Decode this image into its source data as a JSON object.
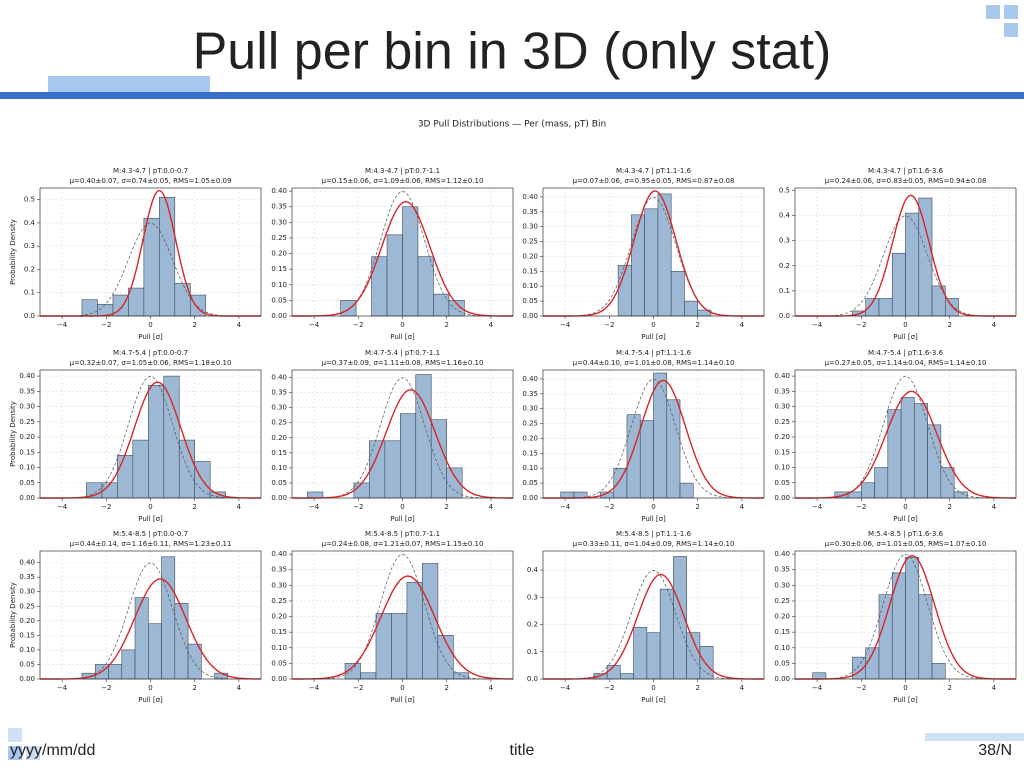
{
  "slide": {
    "title": "Pull per bin in 3D (only stat)",
    "date": "yyyy/mm/dd",
    "footer_title": "title",
    "page": "38/N"
  },
  "figure_title": "3D Pull Distributions — Per (mass, pT) Bin",
  "chart_data": [
    {
      "type": "histogram",
      "title": "M:4.3-4.7 | pT:0.0-0.7",
      "subtitle": "μ=0.40±0.07, σ=0.74±0.05, RMS=1.05±0.09",
      "x_label": "Pull [σ]",
      "y_label": "Probability Density",
      "color": "#9db8d4",
      "fit_color": "#d62728",
      "grid": true,
      "bins": [
        -3.1,
        -2.4,
        -1.7,
        -1.0,
        -0.3,
        0.4,
        1.1,
        1.8,
        2.5
      ],
      "values": [
        0.07,
        0.05,
        0.09,
        0.12,
        0.42,
        0.51,
        0.14,
        0.09
      ],
      "fit": {
        "mu": 0.4,
        "sigma": 0.74
      },
      "xlim": [
        -5,
        5
      ],
      "xticks": [
        {
          "value": -4,
          "label": "−4"
        },
        {
          "value": -2,
          "label": "−2"
        },
        0,
        2,
        4
      ],
      "ylim": [
        0,
        0.55
      ],
      "yticks": [
        {
          "value": 0,
          "label": "0.0"
        },
        {
          "value": 0.1,
          "label": "0.1"
        },
        {
          "value": 0.2,
          "label": "0.2"
        },
        {
          "value": 0.3,
          "label": "0.3"
        },
        {
          "value": 0.4,
          "label": "0.4"
        },
        {
          "value": 0.5,
          "label": "0.5"
        }
      ]
    },
    {
      "type": "histogram",
      "title": "M:4.3-4.7 | pT:0.7-1.1",
      "subtitle": "μ=0.15±0.06, σ=1.09±0.06, RMS=1.12±0.10",
      "x_label": "Pull [σ]",
      "color": "#9db8d4",
      "fit_color": "#d62728",
      "grid": true,
      "bins": [
        -2.8,
        -2.1,
        -1.4,
        -0.7,
        0,
        0.7,
        1.4,
        2.1,
        2.8
      ],
      "values": [
        0.05,
        0,
        0.19,
        0.26,
        0.35,
        0.19,
        0.07,
        0.05
      ],
      "fit": {
        "mu": 0.15,
        "sigma": 1.09
      },
      "xlim": [
        -5,
        5
      ],
      "xticks": [
        {
          "value": -4,
          "label": "−4"
        },
        {
          "value": -2,
          "label": "−2"
        },
        0,
        2,
        4
      ],
      "ylim": [
        0,
        0.41
      ],
      "yticks": [
        {
          "value": 0,
          "label": "0.00"
        },
        {
          "value": 0.05,
          "label": "0.05"
        },
        {
          "value": 0.1,
          "label": "0.10"
        },
        {
          "value": 0.15,
          "label": "0.15"
        },
        {
          "value": 0.2,
          "label": "0.20"
        },
        {
          "value": 0.25,
          "label": "0.25"
        },
        {
          "value": 0.3,
          "label": "0.30"
        },
        {
          "value": 0.35,
          "label": "0.35"
        },
        {
          "value": 0.4,
          "label": "0.40"
        }
      ]
    },
    {
      "type": "histogram",
      "title": "M:4.3-4.7 | pT:1.1-1.6",
      "subtitle": "μ=0.07±0.06, σ=0.95±0.05, RMS=0.87±0.08",
      "x_label": "Pull [σ]",
      "color": "#9db8d4",
      "fit_color": "#d62728",
      "grid": true,
      "bins": [
        -1.6,
        -1.0,
        -0.4,
        0.2,
        0.8,
        1.4,
        2.0,
        2.6
      ],
      "values": [
        0.17,
        0.34,
        0.36,
        0.41,
        0.15,
        0.05,
        0.02
      ],
      "fit": {
        "mu": 0.07,
        "sigma": 0.95
      },
      "xlim": [
        -5,
        5
      ],
      "xticks": [
        {
          "value": -4,
          "label": "−4"
        },
        {
          "value": -2,
          "label": "−2"
        },
        0,
        2,
        4
      ],
      "ylim": [
        0,
        0.43
      ],
      "yticks": [
        {
          "value": 0,
          "label": "0.00"
        },
        {
          "value": 0.05,
          "label": "0.05"
        },
        {
          "value": 0.1,
          "label": "0.10"
        },
        {
          "value": 0.15,
          "label": "0.15"
        },
        {
          "value": 0.2,
          "label": "0.20"
        },
        {
          "value": 0.25,
          "label": "0.25"
        },
        {
          "value": 0.3,
          "label": "0.30"
        },
        {
          "value": 0.35,
          "label": "0.35"
        },
        {
          "value": 0.4,
          "label": "0.40"
        }
      ]
    },
    {
      "type": "histogram",
      "title": "M:4.3-4.7 | pT:1.6-3.6",
      "subtitle": "μ=0.24±0.06, σ=0.83±0.05, RMS=0.94±0.08",
      "x_label": "Pull [σ]",
      "color": "#9db8d4",
      "fit_color": "#d62728",
      "grid": true,
      "bins": [
        -2.4,
        -1.8,
        -1.2,
        -0.6,
        0,
        0.6,
        1.2,
        1.8,
        2.4
      ],
      "values": [
        0.02,
        0.07,
        0.07,
        0.25,
        0.41,
        0.47,
        0.12,
        0.07
      ],
      "fit": {
        "mu": 0.24,
        "sigma": 0.83
      },
      "xlim": [
        -5,
        5
      ],
      "xticks": [
        {
          "value": -4,
          "label": "−4"
        },
        {
          "value": -2,
          "label": "−2"
        },
        0,
        2,
        4
      ],
      "ylim": [
        0,
        0.51
      ],
      "yticks": [
        {
          "value": 0,
          "label": "0.0"
        },
        {
          "value": 0.1,
          "label": "0.1"
        },
        {
          "value": 0.2,
          "label": "0.2"
        },
        {
          "value": 0.3,
          "label": "0.3"
        },
        {
          "value": 0.4,
          "label": "0.4"
        },
        {
          "value": 0.5,
          "label": "0.5"
        }
      ]
    },
    {
      "type": "histogram",
      "title": "M:4.7-5.4 | pT:0.0-0.7",
      "subtitle": "μ=0.32±0.07, σ=1.05±0.06, RMS=1.18±0.10",
      "x_label": "Pull [σ]",
      "y_label": "Probability Density",
      "color": "#9db8d4",
      "fit_color": "#d62728",
      "grid": true,
      "bins": [
        -2.9,
        -2.2,
        -1.5,
        -0.8,
        -0.1,
        0.6,
        1.3,
        2.0,
        2.7,
        3.4
      ],
      "values": [
        0.05,
        0.05,
        0.14,
        0.19,
        0.37,
        0.4,
        0.19,
        0.12,
        0.02
      ],
      "fit": {
        "mu": 0.32,
        "sigma": 1.05
      },
      "xlim": [
        -5,
        5
      ],
      "xticks": [
        {
          "value": -4,
          "label": "−4"
        },
        {
          "value": -2,
          "label": "−2"
        },
        0,
        2,
        4
      ],
      "ylim": [
        0,
        0.42
      ],
      "yticks": [
        {
          "value": 0,
          "label": "0.00"
        },
        {
          "value": 0.05,
          "label": "0.05"
        },
        {
          "value": 0.1,
          "label": "0.10"
        },
        {
          "value": 0.15,
          "label": "0.15"
        },
        {
          "value": 0.2,
          "label": "0.20"
        },
        {
          "value": 0.25,
          "label": "0.25"
        },
        {
          "value": 0.3,
          "label": "0.30"
        },
        {
          "value": 0.35,
          "label": "0.35"
        },
        {
          "value": 0.4,
          "label": "0.40"
        }
      ]
    },
    {
      "type": "histogram",
      "title": "M:4.7-5.4 | pT:0.7-1.1",
      "subtitle": "μ=0.37±0.09, σ=1.11±0.08, RMS=1.16±0.10",
      "x_label": "Pull [σ]",
      "color": "#9db8d4",
      "fit_color": "#d62728",
      "grid": true,
      "bins": [
        -4.3,
        -3.6,
        -2.9,
        -2.2,
        -1.5,
        -0.8,
        -0.1,
        0.6,
        1.3,
        2.0,
        2.7
      ],
      "values": [
        0.02,
        0,
        0,
        0.05,
        0.19,
        0.19,
        0.28,
        0.41,
        0.26,
        0.1
      ],
      "fit": {
        "mu": 0.37,
        "sigma": 1.11
      },
      "xlim": [
        -5,
        5
      ],
      "xticks": [
        {
          "value": -4,
          "label": "−4"
        },
        {
          "value": -2,
          "label": "−2"
        },
        0,
        2,
        4
      ],
      "ylim": [
        0,
        0.425
      ],
      "yticks": [
        {
          "value": 0,
          "label": "0.00"
        },
        {
          "value": 0.05,
          "label": "0.05"
        },
        {
          "value": 0.1,
          "label": "0.10"
        },
        {
          "value": 0.15,
          "label": "0.15"
        },
        {
          "value": 0.2,
          "label": "0.20"
        },
        {
          "value": 0.25,
          "label": "0.25"
        },
        {
          "value": 0.3,
          "label": "0.30"
        },
        {
          "value": 0.35,
          "label": "0.35"
        },
        {
          "value": 0.4,
          "label": "0.40"
        }
      ]
    },
    {
      "type": "histogram",
      "title": "M:4.7-5.4 | pT:1.1-1.6",
      "subtitle": "μ=0.44±0.10, σ=1.01±0.08, RMS=1.14±0.10",
      "x_label": "Pull [σ]",
      "color": "#9db8d4",
      "fit_color": "#d62728",
      "grid": true,
      "bins": [
        -4.2,
        -3.6,
        -3.0,
        -2.4,
        -1.8,
        -1.2,
        -0.6,
        0,
        0.6,
        1.2,
        1.8
      ],
      "values": [
        0.02,
        0.02,
        0,
        0.02,
        0.1,
        0.28,
        0.26,
        0.42,
        0.33,
        0.05
      ],
      "fit": {
        "mu": 0.44,
        "sigma": 1.01
      },
      "xlim": [
        -5,
        5
      ],
      "xticks": [
        {
          "value": -4,
          "label": "−4"
        },
        {
          "value": -2,
          "label": "−2"
        },
        0,
        2,
        4
      ],
      "ylim": [
        0,
        0.43
      ],
      "yticks": [
        {
          "value": 0,
          "label": "0.00"
        },
        {
          "value": 0.05,
          "label": "0.05"
        },
        {
          "value": 0.1,
          "label": "0.10"
        },
        {
          "value": 0.15,
          "label": "0.15"
        },
        {
          "value": 0.2,
          "label": "0.20"
        },
        {
          "value": 0.25,
          "label": "0.25"
        },
        {
          "value": 0.3,
          "label": "0.30"
        },
        {
          "value": 0.35,
          "label": "0.35"
        },
        {
          "value": 0.4,
          "label": "0.40"
        }
      ]
    },
    {
      "type": "histogram",
      "title": "M:4.7-5.4 | pT:1.6-3.6",
      "subtitle": "μ=0.27±0.05, σ=1.14±0.04, RMS=1.14±0.10",
      "x_label": "Pull [σ]",
      "color": "#9db8d4",
      "fit_color": "#d62728",
      "grid": true,
      "bins": [
        -3.2,
        -2.6,
        -2.0,
        -1.4,
        -0.8,
        -0.2,
        0.4,
        1.0,
        1.6,
        2.2,
        2.8
      ],
      "values": [
        0.02,
        0.02,
        0.05,
        0.1,
        0.29,
        0.33,
        0.31,
        0.24,
        0.1,
        0.02
      ],
      "fit": {
        "mu": 0.27,
        "sigma": 1.14
      },
      "xlim": [
        -5,
        5
      ],
      "xticks": [
        {
          "value": -4,
          "label": "−4"
        },
        {
          "value": -2,
          "label": "−2"
        },
        0,
        2,
        4
      ],
      "ylim": [
        0,
        0.42
      ],
      "yticks": [
        {
          "value": 0,
          "label": "0.00"
        },
        {
          "value": 0.05,
          "label": "0.05"
        },
        {
          "value": 0.1,
          "label": "0.10"
        },
        {
          "value": 0.15,
          "label": "0.15"
        },
        {
          "value": 0.2,
          "label": "0.20"
        },
        {
          "value": 0.25,
          "label": "0.25"
        },
        {
          "value": 0.3,
          "label": "0.30"
        },
        {
          "value": 0.35,
          "label": "0.35"
        },
        {
          "value": 0.4,
          "label": "0.40"
        }
      ]
    },
    {
      "type": "histogram",
      "title": "M:5.4-8.5 | pT:0.0-0.7",
      "subtitle": "μ=0.44±0.14, σ=1.16±0.11, RMS=1.23±0.11",
      "x_label": "Pull [σ]",
      "y_label": "Probability Density",
      "color": "#9db8d4",
      "fit_color": "#d62728",
      "grid": true,
      "bins": [
        -3.1,
        -2.5,
        -1.9,
        -1.3,
        -0.7,
        -0.1,
        0.5,
        1.1,
        1.7,
        2.3,
        2.9,
        3.5
      ],
      "values": [
        0.02,
        0.05,
        0.05,
        0.1,
        0.28,
        0.19,
        0.42,
        0.26,
        0.12,
        0,
        0.02
      ],
      "fit": {
        "mu": 0.44,
        "sigma": 1.16
      },
      "xlim": [
        -5,
        5
      ],
      "xticks": [
        {
          "value": -4,
          "label": "−4"
        },
        {
          "value": -2,
          "label": "−2"
        },
        0,
        2,
        4
      ],
      "ylim": [
        0,
        0.44
      ],
      "yticks": [
        {
          "value": 0,
          "label": "0.00"
        },
        {
          "value": 0.05,
          "label": "0.05"
        },
        {
          "value": 0.1,
          "label": "0.10"
        },
        {
          "value": 0.15,
          "label": "0.15"
        },
        {
          "value": 0.2,
          "label": "0.20"
        },
        {
          "value": 0.25,
          "label": "0.25"
        },
        {
          "value": 0.3,
          "label": "0.30"
        },
        {
          "value": 0.35,
          "label": "0.35"
        },
        {
          "value": 0.4,
          "label": "0.40"
        }
      ]
    },
    {
      "type": "histogram",
      "title": "M:5.4-8.5 | pT:0.7-1.1",
      "subtitle": "μ=0.24±0.08, σ=1.21±0.07, RMS=1.15±0.10",
      "x_label": "Pull [σ]",
      "color": "#9db8d4",
      "fit_color": "#d62728",
      "grid": true,
      "bins": [
        -2.6,
        -1.9,
        -1.2,
        -0.5,
        0.2,
        0.9,
        1.6,
        2.3,
        3.0
      ],
      "values": [
        0.05,
        0.02,
        0.21,
        0.21,
        0.31,
        0.37,
        0.14,
        0.02
      ],
      "fit": {
        "mu": 0.24,
        "sigma": 1.21
      },
      "xlim": [
        -5,
        5
      ],
      "xticks": [
        {
          "value": -4,
          "label": "−4"
        },
        {
          "value": -2,
          "label": "−2"
        },
        0,
        2,
        4
      ],
      "ylim": [
        0,
        0.41
      ],
      "yticks": [
        {
          "value": 0,
          "label": "0.00"
        },
        {
          "value": 0.05,
          "label": "0.05"
        },
        {
          "value": 0.1,
          "label": "0.10"
        },
        {
          "value": 0.15,
          "label": "0.15"
        },
        {
          "value": 0.2,
          "label": "0.20"
        },
        {
          "value": 0.25,
          "label": "0.25"
        },
        {
          "value": 0.3,
          "label": "0.30"
        },
        {
          "value": 0.35,
          "label": "0.35"
        },
        {
          "value": 0.4,
          "label": "0.40"
        }
      ]
    },
    {
      "type": "histogram",
      "title": "M:5.4-8.5 | pT:1.1-1.6",
      "subtitle": "μ=0.33±0.11, σ=1.04±0.09, RMS=1.14±0.10",
      "x_label": "Pull [σ]",
      "color": "#9db8d4",
      "fit_color": "#d62728",
      "grid": true,
      "bins": [
        -2.7,
        -2.1,
        -1.5,
        -0.9,
        -0.3,
        0.3,
        0.9,
        1.5,
        2.1,
        2.7
      ],
      "values": [
        0.02,
        0.05,
        0.02,
        0.19,
        0.17,
        0.33,
        0.45,
        0.17,
        0.12
      ],
      "fit": {
        "mu": 0.33,
        "sigma": 1.04
      },
      "xlim": [
        -5,
        5
      ],
      "xticks": [
        {
          "value": -4,
          "label": "−4"
        },
        {
          "value": -2,
          "label": "−2"
        },
        0,
        2,
        4
      ],
      "ylim": [
        0,
        0.47
      ],
      "yticks": [
        {
          "value": 0,
          "label": "0.0"
        },
        {
          "value": 0.1,
          "label": "0.1"
        },
        {
          "value": 0.2,
          "label": "0.2"
        },
        {
          "value": 0.3,
          "label": "0.3"
        },
        {
          "value": 0.4,
          "label": "0.4"
        }
      ]
    },
    {
      "type": "histogram",
      "title": "M:5.4-8.5 | pT:1.6-3.6",
      "subtitle": "μ=0.30±0.06, σ=1.01±0.05, RMS=1.07±0.10",
      "x_label": "Pull [σ]",
      "color": "#9db8d4",
      "fit_color": "#d62728",
      "grid": true,
      "bins": [
        -4.2,
        -3.6,
        -3.0,
        -2.4,
        -1.8,
        -1.2,
        -0.6,
        0,
        0.6,
        1.2,
        1.8
      ],
      "values": [
        0.02,
        0,
        0,
        0.07,
        0.1,
        0.27,
        0.34,
        0.39,
        0.27,
        0.05
      ],
      "fit": {
        "mu": 0.3,
        "sigma": 1.01
      },
      "xlim": [
        -5,
        5
      ],
      "xticks": [
        {
          "value": -4,
          "label": "−4"
        },
        {
          "value": -2,
          "label": "−2"
        },
        0,
        2,
        4
      ],
      "ylim": [
        0,
        0.41
      ],
      "yticks": [
        {
          "value": 0,
          "label": "0.00"
        },
        {
          "value": 0.05,
          "label": "0.05"
        },
        {
          "value": 0.1,
          "label": "0.10"
        },
        {
          "value": 0.15,
          "label": "0.15"
        },
        {
          "value": 0.2,
          "label": "0.20"
        },
        {
          "value": 0.25,
          "label": "0.25"
        },
        {
          "value": 0.3,
          "label": "0.30"
        },
        {
          "value": 0.35,
          "label": "0.35"
        },
        {
          "value": 0.4,
          "label": "0.40"
        }
      ]
    }
  ]
}
